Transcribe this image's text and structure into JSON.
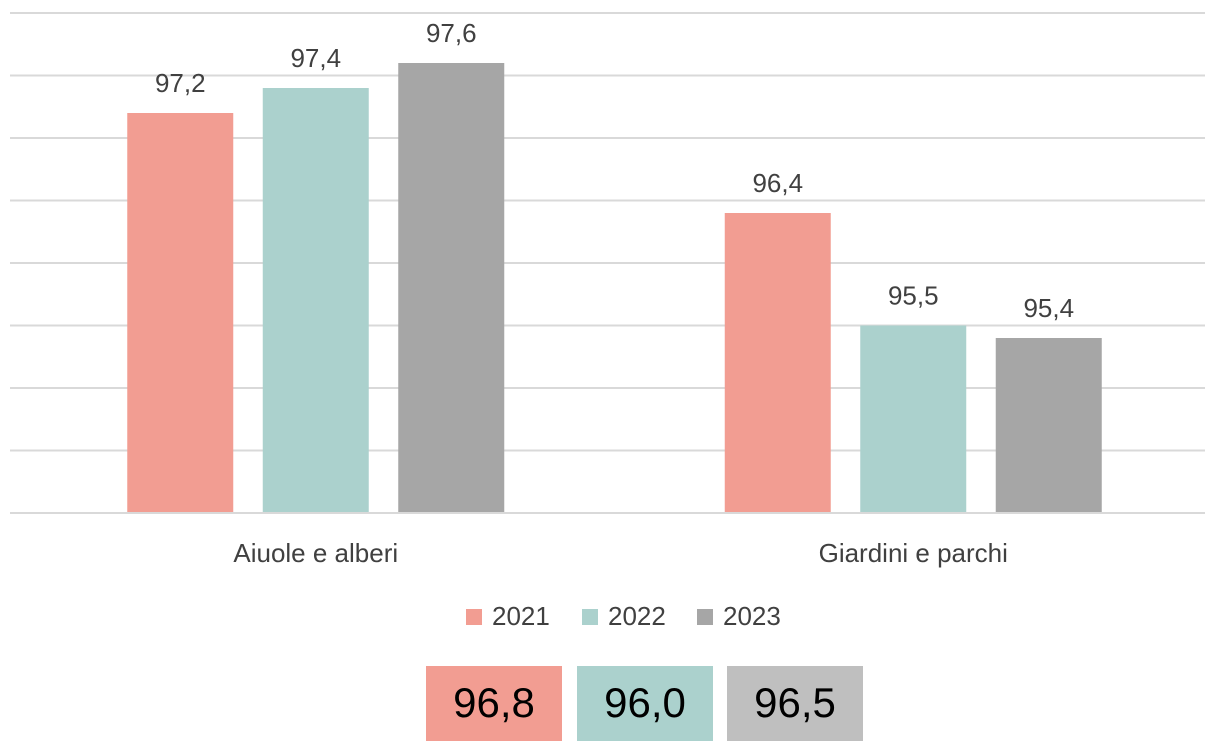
{
  "chart_data": {
    "type": "bar",
    "categories": [
      "Aiuole e alberi",
      "Giardini e parchi"
    ],
    "series": [
      {
        "name": "2021",
        "color": "#f29d92",
        "values": [
          97.2,
          96.4
        ],
        "value_labels": [
          "97,2",
          "96,4"
        ]
      },
      {
        "name": "2022",
        "color": "#abd1cd",
        "values": [
          97.4,
          95.5
        ],
        "value_labels": [
          "97,4",
          "95,5"
        ]
      },
      {
        "name": "2023",
        "color": "#a6a6a6",
        "values": [
          97.6,
          95.4
        ],
        "value_labels": [
          "97,6",
          "95,4"
        ]
      }
    ],
    "ylim": [
      94,
      98
    ],
    "yticks": [
      94,
      94.5,
      95,
      95.5,
      96,
      96.5,
      97,
      97.5,
      98
    ],
    "grid": true,
    "legend": "bottom",
    "totals": {
      "values": [
        96.8,
        96.0,
        96.5
      ],
      "value_labels": [
        "96,8",
        "96,0",
        "96,5"
      ],
      "colors": [
        "#f29d92",
        "#abd1cd",
        "#bfbfbf"
      ]
    }
  }
}
